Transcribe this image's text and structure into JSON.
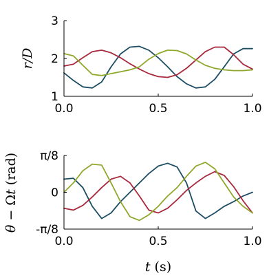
{
  "chart_data": [
    {
      "type": "line",
      "xlabel": "",
      "ylabel": "r/D",
      "xlim": [
        0,
        1
      ],
      "ylim": [
        1,
        3
      ],
      "x_ticks": [
        0,
        0.5,
        1
      ],
      "x_tick_labels": [
        "0.0",
        "0.5",
        "1.0"
      ],
      "y_ticks": [
        1,
        2,
        3
      ],
      "y_tick_labels": [
        "1",
        "2",
        "3"
      ],
      "grid": false,
      "x": [
        0,
        0.05,
        0.1,
        0.15,
        0.2,
        0.25,
        0.3,
        0.35,
        0.4,
        0.45,
        0.5,
        0.55,
        0.6,
        0.65,
        0.7,
        0.75,
        0.8,
        0.85,
        0.9,
        0.95,
        1.0
      ],
      "series": [
        {
          "color": "#1d4d63",
          "values": [
            1.62,
            1.42,
            1.25,
            1.22,
            1.38,
            1.78,
            2.12,
            2.3,
            2.32,
            2.22,
            2.02,
            1.78,
            1.52,
            1.33,
            1.22,
            1.25,
            1.45,
            1.78,
            2.12,
            2.26,
            2.26
          ]
        },
        {
          "color": "#a8283c",
          "values": [
            1.8,
            1.85,
            2.02,
            2.18,
            2.22,
            2.15,
            2.02,
            1.86,
            1.72,
            1.6,
            1.52,
            1.5,
            1.57,
            1.74,
            1.96,
            2.18,
            2.3,
            2.3,
            2.1,
            1.85,
            1.72
          ]
        },
        {
          "color": "#8fa82c",
          "values": [
            2.13,
            2.07,
            1.82,
            1.58,
            1.55,
            1.6,
            1.65,
            1.7,
            1.78,
            1.98,
            2.13,
            2.22,
            2.21,
            2.12,
            1.96,
            1.82,
            1.74,
            1.7,
            1.68,
            1.68,
            1.7
          ]
        }
      ]
    },
    {
      "type": "line",
      "xlabel": "t (s)",
      "ylabel": "θ − Ωt (rad)",
      "xlim": [
        0,
        1
      ],
      "ylim": [
        -0.3927,
        0.3927
      ],
      "x_ticks": [
        0,
        0.5,
        1
      ],
      "x_tick_labels": [
        "0.0",
        "0.5",
        "1.0"
      ],
      "y_ticks": [
        -0.3927,
        0,
        0.3927
      ],
      "y_tick_labels": [
        "-π/8",
        "0",
        "π/8"
      ],
      "grid": false,
      "x": [
        0,
        0.05,
        0.1,
        0.15,
        0.2,
        0.25,
        0.3,
        0.35,
        0.4,
        0.45,
        0.5,
        0.55,
        0.6,
        0.65,
        0.7,
        0.75,
        0.8,
        0.85,
        0.9,
        0.95,
        1.0
      ],
      "series": [
        {
          "color": "#1d4d63",
          "values": [
            0.14,
            0.15,
            0.05,
            -0.15,
            -0.28,
            -0.22,
            -0.1,
            0.0,
            0.1,
            0.2,
            0.28,
            0.31,
            0.27,
            0.1,
            -0.2,
            -0.28,
            -0.22,
            -0.15,
            -0.1,
            -0.04,
            0.0
          ]
        },
        {
          "color": "#a8283c",
          "values": [
            -0.17,
            -0.19,
            -0.14,
            -0.05,
            0.05,
            0.14,
            0.17,
            0.1,
            -0.04,
            -0.19,
            -0.22,
            -0.17,
            -0.08,
            0.02,
            0.1,
            0.17,
            0.22,
            0.18,
            0.06,
            -0.09,
            -0.22
          ]
        },
        {
          "color": "#8fa82c",
          "values": [
            0.0,
            0.1,
            0.23,
            0.3,
            0.29,
            0.1,
            -0.1,
            -0.26,
            -0.3,
            -0.24,
            -0.15,
            -0.04,
            0.05,
            0.17,
            0.28,
            0.32,
            0.25,
            0.1,
            -0.05,
            -0.15,
            -0.22
          ]
        }
      ]
    }
  ]
}
